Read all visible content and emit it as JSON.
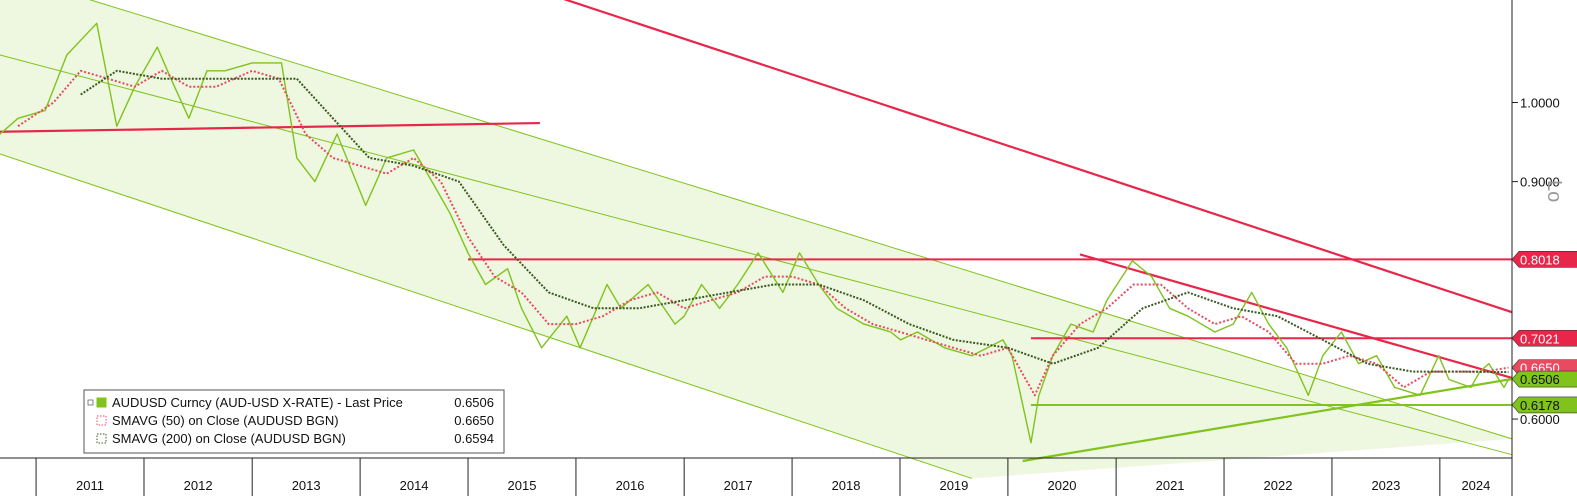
{
  "chart_data": {
    "type": "line",
    "title": "",
    "xlabel": "",
    "ylabel": "",
    "x_range": [
      "2010-09-01",
      "2024-09-01"
    ],
    "y_range": [
      0.5508,
      1.1295
    ],
    "x_ticks": [
      "2011",
      "2012",
      "2013",
      "2014",
      "2015",
      "2016",
      "2017",
      "2018",
      "2019",
      "2020",
      "2021",
      "2022",
      "2023",
      "2024"
    ],
    "y_ticks": [
      {
        "value": 1.0,
        "label": "1.0000"
      },
      {
        "value": 0.9,
        "label": "0.9000"
      },
      {
        "value": 0.6,
        "label": "0.6000"
      }
    ],
    "y_scale_label": "Lo",
    "series": [
      {
        "name": "AUDUSD Curncy (AUD-USD X-RATE) - Last Price",
        "last": "0.6506",
        "color": "#7fc31c",
        "x": [
          "2010-09-01",
          "2010-11-01",
          "2011-02-01",
          "2011-04-15",
          "2011-07-25",
          "2011-10-01",
          "2011-12-01",
          "2012-02-15",
          "2012-04-01",
          "2012-06-01",
          "2012-08-01",
          "2012-10-01",
          "2013-01-01",
          "2013-04-10",
          "2013-06-01",
          "2013-08-01",
          "2013-10-15",
          "2014-01-20",
          "2014-04-01",
          "2014-07-01",
          "2014-09-01",
          "2014-11-01",
          "2015-01-01",
          "2015-03-01",
          "2015-05-15",
          "2015-07-01",
          "2015-09-07",
          "2015-12-01",
          "2016-01-15",
          "2016-04-15",
          "2016-06-01",
          "2016-09-01",
          "2016-12-01",
          "2017-01-01",
          "2017-03-01",
          "2017-05-01",
          "2017-07-01",
          "2017-09-08",
          "2017-12-01",
          "2018-01-26",
          "2018-04-01",
          "2018-06-01",
          "2018-09-01",
          "2018-12-01",
          "2019-01-03",
          "2019-03-01",
          "2019-06-01",
          "2019-09-01",
          "2019-12-15",
          "2020-01-15",
          "2020-03-19",
          "2020-04-15",
          "2020-06-01",
          "2020-08-01",
          "2020-10-15",
          "2020-12-01",
          "2021-02-25",
          "2021-05-01",
          "2021-07-01",
          "2021-09-01",
          "2021-12-01",
          "2022-02-01",
          "2022-04-05",
          "2022-06-01",
          "2022-08-01",
          "2022-10-13",
          "2022-12-01",
          "2023-02-02",
          "2023-04-01",
          "2023-06-01",
          "2023-08-01",
          "2023-10-26",
          "2023-12-28",
          "2024-02-01",
          "2024-04-15",
          "2024-05-15",
          "2024-06-15",
          "2024-08-05",
          "2024-08-20"
        ],
        "values": [
          0.96,
          0.98,
          0.99,
          1.06,
          1.1,
          0.97,
          1.02,
          1.07,
          1.03,
          0.98,
          1.04,
          1.04,
          1.05,
          1.05,
          0.93,
          0.9,
          0.96,
          0.87,
          0.93,
          0.94,
          0.9,
          0.86,
          0.81,
          0.77,
          0.79,
          0.74,
          0.69,
          0.73,
          0.69,
          0.77,
          0.74,
          0.77,
          0.72,
          0.73,
          0.77,
          0.74,
          0.77,
          0.81,
          0.76,
          0.81,
          0.77,
          0.74,
          0.72,
          0.71,
          0.7,
          0.71,
          0.69,
          0.68,
          0.7,
          0.68,
          0.57,
          0.63,
          0.68,
          0.72,
          0.71,
          0.75,
          0.8,
          0.78,
          0.74,
          0.73,
          0.71,
          0.72,
          0.76,
          0.72,
          0.69,
          0.63,
          0.68,
          0.71,
          0.67,
          0.68,
          0.64,
          0.63,
          0.68,
          0.65,
          0.64,
          0.66,
          0.67,
          0.64,
          0.65
        ]
      },
      {
        "name": "SMAVG (50)  on Close (AUDUSD BGN)",
        "last": "0.6650",
        "color": "#e84a5f",
        "x": [
          "2010-11-01",
          "2011-03-01",
          "2011-06-01",
          "2011-09-01",
          "2011-12-01",
          "2012-03-01",
          "2012-06-01",
          "2012-09-01",
          "2013-01-01",
          "2013-04-01",
          "2013-07-01",
          "2013-10-01",
          "2014-01-01",
          "2014-04-01",
          "2014-07-01",
          "2014-10-01",
          "2015-01-01",
          "2015-04-01",
          "2015-07-01",
          "2015-10-01",
          "2016-01-01",
          "2016-04-01",
          "2016-07-01",
          "2016-10-01",
          "2017-01-01",
          "2017-04-01",
          "2017-07-01",
          "2017-10-01",
          "2018-01-01",
          "2018-04-01",
          "2018-07-01",
          "2018-10-01",
          "2019-01-01",
          "2019-04-01",
          "2019-07-01",
          "2019-10-01",
          "2020-01-01",
          "2020-04-01",
          "2020-06-01",
          "2020-09-01",
          "2020-12-01",
          "2021-03-01",
          "2021-06-01",
          "2021-09-01",
          "2021-12-01",
          "2022-03-01",
          "2022-06-01",
          "2022-09-01",
          "2022-12-01",
          "2023-03-01",
          "2023-06-01",
          "2023-09-01",
          "2023-12-01",
          "2024-03-01",
          "2024-06-01",
          "2024-08-20"
        ],
        "values": [
          0.97,
          1.0,
          1.04,
          1.03,
          1.02,
          1.04,
          1.02,
          1.02,
          1.04,
          1.03,
          0.96,
          0.93,
          0.92,
          0.91,
          0.93,
          0.9,
          0.83,
          0.78,
          0.76,
          0.72,
          0.72,
          0.73,
          0.75,
          0.76,
          0.74,
          0.75,
          0.76,
          0.78,
          0.78,
          0.77,
          0.74,
          0.72,
          0.71,
          0.7,
          0.69,
          0.68,
          0.69,
          0.63,
          0.68,
          0.72,
          0.74,
          0.77,
          0.77,
          0.74,
          0.72,
          0.73,
          0.71,
          0.67,
          0.67,
          0.68,
          0.67,
          0.64,
          0.66,
          0.66,
          0.66,
          0.665
        ]
      },
      {
        "name": "SMAVG (200)  on Close (AUDUSD BGN)",
        "last": "0.6594",
        "color": "#3b5a22",
        "x": [
          "2011-06-01",
          "2011-10-01",
          "2012-03-01",
          "2012-08-01",
          "2013-01-01",
          "2013-06-01",
          "2013-10-01",
          "2014-02-01",
          "2014-07-01",
          "2014-12-01",
          "2015-05-01",
          "2015-10-01",
          "2016-03-01",
          "2016-08-01",
          "2017-01-01",
          "2017-06-01",
          "2017-11-01",
          "2018-04-01",
          "2018-09-01",
          "2019-02-01",
          "2019-07-01",
          "2020-01-01",
          "2020-06-01",
          "2020-11-01",
          "2021-04-01",
          "2021-09-01",
          "2022-02-01",
          "2022-07-01",
          "2022-12-01",
          "2023-05-01",
          "2023-10-01",
          "2024-03-01",
          "2024-08-20"
        ],
        "values": [
          1.01,
          1.04,
          1.03,
          1.03,
          1.03,
          1.03,
          0.98,
          0.93,
          0.92,
          0.9,
          0.82,
          0.76,
          0.74,
          0.74,
          0.75,
          0.76,
          0.77,
          0.77,
          0.75,
          0.72,
          0.7,
          0.69,
          0.67,
          0.69,
          0.74,
          0.76,
          0.74,
          0.73,
          0.7,
          0.67,
          0.66,
          0.66,
          0.6594
        ]
      }
    ],
    "horizontal_levels": [
      {
        "label": "0.8018",
        "value": 0.8018,
        "color": "#e8264a"
      },
      {
        "label": "0.7021",
        "value": 0.7021,
        "color": "#e8264a"
      },
      {
        "label": "0.6178",
        "value": 0.6178,
        "color": "#7fc31c"
      }
    ],
    "price_tags": [
      {
        "label": "0.8018",
        "value": 0.8018,
        "color": "#e8264a"
      },
      {
        "label": "0.7021",
        "value": 0.7021,
        "color": "#e8264a"
      },
      {
        "label": "0.6650",
        "value": 0.665,
        "color": "#e84a5f"
      },
      {
        "label": "0.6506",
        "value": 0.6506,
        "color": "#7fc31c"
      },
      {
        "label": "0.6178",
        "value": 0.6178,
        "color": "#7fc31c"
      }
    ],
    "trendlines": [
      {
        "kind": "resistance",
        "color": "#e8264a",
        "from": {
          "x": "2010-09-01",
          "y": 0.963
        },
        "to": {
          "x": "2015-09-01",
          "y": 0.974
        }
      },
      {
        "kind": "resistance",
        "color": "#e8264a",
        "from": {
          "x": "2015-10-01",
          "y": 1.137
        },
        "to": {
          "x": "2024-09-01",
          "y": 0.735
        }
      },
      {
        "kind": "resistance",
        "color": "#e8264a",
        "from": {
          "x": "2020-09-01",
          "y": 0.808
        },
        "to": {
          "x": "2024-09-01",
          "y": 0.652
        }
      },
      {
        "kind": "support",
        "color": "#7fc31c",
        "from": {
          "x": "2020-02-20",
          "y": 0.547
        },
        "to": {
          "x": "2024-09-01",
          "y": 0.6506
        }
      }
    ],
    "channel": {
      "color": "#7fc31c",
      "fill": "#eef7df",
      "upper": {
        "from": {
          "x": "2011-07-01",
          "y": 1.13
        },
        "to": {
          "x": "2024-09-01",
          "y": 0.575
        }
      },
      "lower": {
        "from": {
          "x": "2010-09-01",
          "y": 0.935
        },
        "to": {
          "x": "2019-09-01",
          "y": 0.525
        }
      },
      "mid": {
        "from": {
          "x": "2010-09-01",
          "y": 1.06
        },
        "to": {
          "x": "2024-09-01",
          "y": 0.555
        }
      }
    },
    "legend": {
      "position": "bottom-left",
      "entries": [
        {
          "label": "AUDUSD Curncy (AUD-USD X-RATE) - Last Price",
          "value": "0.6506",
          "swatch": "solid"
        },
        {
          "label": "SMAVG (50)  on Close (AUDUSD BGN)",
          "value": "0.6650",
          "swatch": "dotted"
        },
        {
          "label": "SMAVG (200)  on Close (AUDUSD BGN)",
          "value": "0.6594",
          "swatch": "dotted"
        }
      ]
    },
    "grid": false
  }
}
